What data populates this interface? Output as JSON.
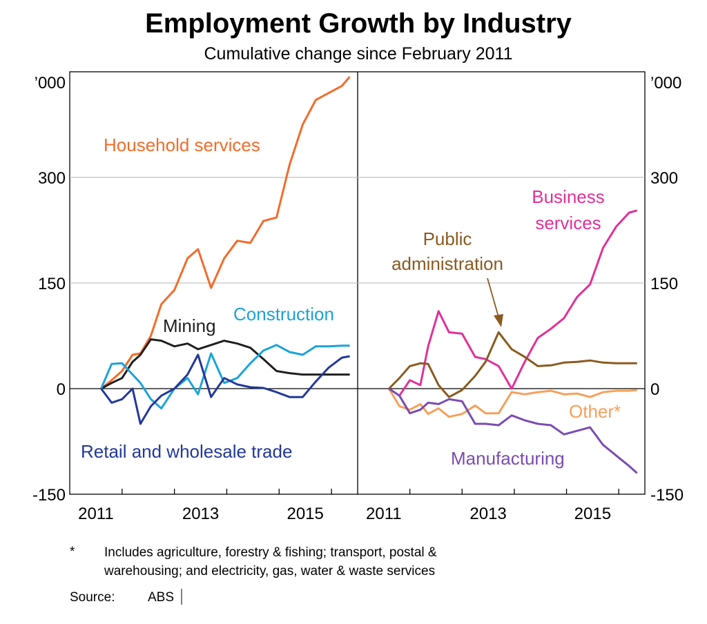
{
  "chart_data": {
    "type": "line",
    "title": "Employment Growth by Industry",
    "subtitle": "Cumulative change since February 2011",
    "unit": "’000",
    "ylim": [
      -150,
      450
    ],
    "yticks": [
      "300",
      "150",
      "0",
      "-150"
    ],
    "ytick_values": [
      300,
      150,
      0,
      -150
    ],
    "xlim": [
      2010.5,
      2016.0
    ],
    "xtick_labels": [
      "2011",
      "2013",
      "2015"
    ],
    "xtick_values": [
      2011,
      2013,
      2015
    ],
    "xtick_marks": [
      2011.5,
      2012.5,
      2013.5,
      2014.5,
      2015.5
    ],
    "grid": true,
    "panels": [
      {
        "series": [
          {
            "name": "Household services",
            "color": "#f26c2a",
            "x": [
              2011.1,
              2011.3,
              2011.5,
              2011.7,
              2011.85,
              2012.05,
              2012.25,
              2012.5,
              2012.75,
              2012.95,
              2013.2,
              2013.45,
              2013.7,
              2013.95,
              2014.2,
              2014.45,
              2014.7,
              2014.95,
              2015.2,
              2015.45,
              2015.7,
              2015.85
            ],
            "y": [
              0,
              12,
              25,
              48,
              50,
              75,
              120,
              140,
              185,
              198,
              143,
              185,
              210,
              207,
              238,
              243,
              318,
              375,
              410,
              420,
              430,
              443
            ]
          },
          {
            "name": "Mining",
            "color": "#1f1f1f",
            "x": [
              2011.1,
              2011.3,
              2011.5,
              2011.7,
              2011.85,
              2012.05,
              2012.25,
              2012.5,
              2012.75,
              2012.95,
              2013.2,
              2013.45,
              2013.7,
              2013.95,
              2014.2,
              2014.45,
              2014.7,
              2014.95,
              2015.2,
              2015.45,
              2015.7,
              2015.85
            ],
            "y": [
              0,
              8,
              15,
              38,
              48,
              70,
              68,
              60,
              64,
              56,
              62,
              68,
              64,
              58,
              42,
              25,
              22,
              20,
              20,
              20,
              20,
              20
            ]
          },
          {
            "name": "Construction",
            "color": "#1aa3d9",
            "x": [
              2011.1,
              2011.3,
              2011.5,
              2011.7,
              2011.85,
              2012.05,
              2012.25,
              2012.5,
              2012.75,
              2012.95,
              2013.2,
              2013.45,
              2013.7,
              2013.95,
              2014.2,
              2014.45,
              2014.7,
              2014.95,
              2015.2,
              2015.45,
              2015.7,
              2015.85
            ],
            "y": [
              0,
              35,
              36,
              20,
              8,
              -15,
              -28,
              0,
              15,
              -8,
              50,
              8,
              15,
              36,
              54,
              62,
              52,
              48,
              60,
              60,
              61,
              61
            ]
          },
          {
            "name": "Retail and wholesale trade",
            "color": "#22389a",
            "x": [
              2011.1,
              2011.3,
              2011.5,
              2011.7,
              2011.85,
              2012.05,
              2012.25,
              2012.5,
              2012.75,
              2012.95,
              2013.2,
              2013.45,
              2013.7,
              2013.95,
              2014.2,
              2014.45,
              2014.7,
              2014.95,
              2015.2,
              2015.45,
              2015.7,
              2015.85
            ],
            "y": [
              0,
              -20,
              -15,
              0,
              -50,
              -25,
              -10,
              0,
              20,
              48,
              -12,
              15,
              6,
              2,
              1,
              -5,
              -12,
              -12,
              10,
              30,
              44,
              46
            ]
          }
        ],
        "labels": [
          "Household services",
          "Mining",
          "Construction",
          "Retail and wholesale trade"
        ]
      },
      {
        "series": [
          {
            "name": "Business services",
            "color": "#e0309a",
            "x": [
              2011.1,
              2011.3,
              2011.5,
              2011.7,
              2011.85,
              2012.05,
              2012.25,
              2012.5,
              2012.75,
              2012.95,
              2013.2,
              2013.45,
              2013.7,
              2013.95,
              2014.2,
              2014.45,
              2014.7,
              2014.95,
              2015.2,
              2015.45,
              2015.7,
              2015.85
            ],
            "y": [
              0,
              -10,
              12,
              5,
              60,
              110,
              80,
              78,
              45,
              42,
              32,
              0,
              38,
              72,
              85,
              100,
              130,
              148,
              200,
              230,
              250,
              253
            ]
          },
          {
            "name": "Public administration",
            "color": "#8a5a1f",
            "x": [
              2011.1,
              2011.3,
              2011.5,
              2011.7,
              2011.85,
              2012.05,
              2012.25,
              2012.5,
              2012.75,
              2012.95,
              2013.2,
              2013.45,
              2013.7,
              2013.95,
              2014.2,
              2014.45,
              2014.7,
              2014.95,
              2015.2,
              2015.45,
              2015.7,
              2015.85
            ],
            "y": [
              0,
              15,
              32,
              36,
              35,
              5,
              -12,
              -2,
              18,
              38,
              80,
              56,
              45,
              32,
              33,
              37,
              38,
              40,
              37,
              36,
              36,
              36
            ]
          },
          {
            "name": "Other*",
            "color": "#f5a05a",
            "x": [
              2011.1,
              2011.3,
              2011.5,
              2011.7,
              2011.85,
              2012.05,
              2012.25,
              2012.5,
              2012.75,
              2012.95,
              2013.2,
              2013.45,
              2013.7,
              2013.95,
              2014.2,
              2014.45,
              2014.7,
              2014.95,
              2015.2,
              2015.45,
              2015.7,
              2015.85
            ],
            "y": [
              0,
              -25,
              -30,
              -22,
              -36,
              -28,
              -40,
              -36,
              -24,
              -35,
              -35,
              -5,
              -8,
              -5,
              -3,
              -8,
              -7,
              -12,
              -5,
              -3,
              -3,
              -2
            ]
          },
          {
            "name": "Manufacturing",
            "color": "#7b4bb0",
            "x": [
              2011.1,
              2011.3,
              2011.5,
              2011.7,
              2011.85,
              2012.05,
              2012.25,
              2012.5,
              2012.75,
              2012.95,
              2013.2,
              2013.45,
              2013.7,
              2013.95,
              2014.2,
              2014.45,
              2014.7,
              2014.95,
              2015.2,
              2015.45,
              2015.7,
              2015.85
            ],
            "y": [
              0,
              -10,
              -35,
              -30,
              -20,
              -22,
              -15,
              -18,
              -50,
              -50,
              -52,
              -38,
              -45,
              -50,
              -52,
              -65,
              -60,
              -55,
              -80,
              -95,
              -110,
              -120
            ]
          }
        ],
        "labels": [
          "Business services",
          "Public",
          "administration",
          "Other*",
          "Manufacturing"
        ]
      }
    ]
  },
  "footnote": {
    "marker": "*",
    "line1": "Includes agriculture, forestry & fishing; transport, postal &",
    "line2": "warehousing; and electricity, gas, water & waste services"
  },
  "source": {
    "label": "Source:",
    "value": "ABS"
  }
}
